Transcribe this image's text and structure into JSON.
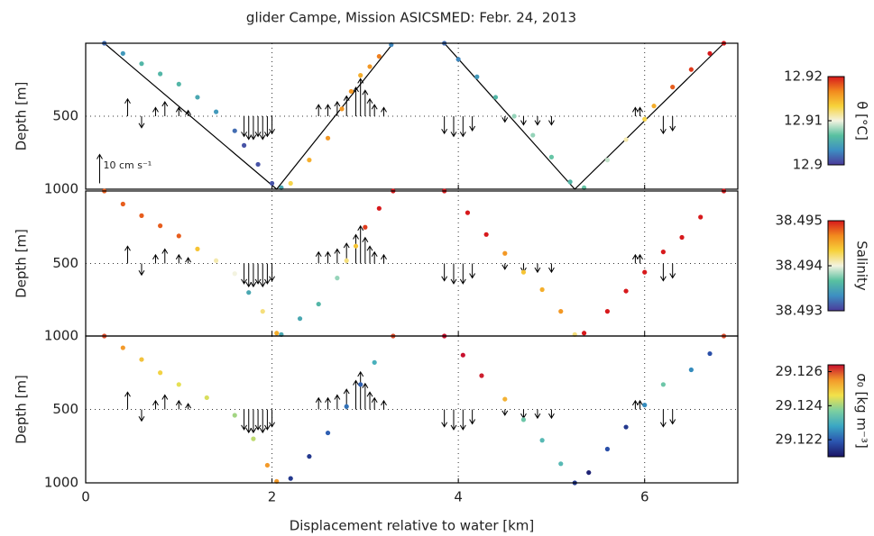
{
  "chart_data": [
    {
      "type": "scatter",
      "title": "glider Campe, Mission ASICSMED: Febr. 24, 2013",
      "ylabel": "Depth [m]",
      "xlim": [
        0,
        7
      ],
      "xticks": [
        0,
        2,
        4,
        6
      ],
      "ylim": [
        1000,
        0
      ],
      "yticks": [
        500,
        1000
      ],
      "grid": true,
      "x": [
        0.2,
        0.4,
        0.6,
        0.8,
        1.0,
        1.2,
        1.4,
        1.6,
        1.7,
        1.85,
        2.0,
        2.1,
        2.2,
        2.4,
        2.6,
        2.75,
        2.85,
        2.95,
        3.05,
        3.15,
        3.28,
        3.85,
        4.0,
        4.2,
        4.4,
        4.6,
        4.8,
        5.0,
        5.2,
        5.35,
        5.6,
        5.8,
        6.0,
        6.1,
        6.3,
        6.5,
        6.7,
        6.85
      ],
      "values": [
        0,
        70,
        140,
        210,
        280,
        370,
        470,
        600,
        700,
        830,
        960,
        990,
        960,
        800,
        650,
        450,
        330,
        220,
        160,
        90,
        10,
        0,
        110,
        230,
        370,
        500,
        630,
        780,
        950,
        990,
        800,
        660,
        520,
        430,
        300,
        180,
        70,
        0
      ],
      "color_values": [
        12.902,
        12.904,
        12.906,
        12.906,
        12.906,
        12.905,
        12.904,
        12.902,
        12.901,
        12.901,
        12.901,
        12.905,
        12.913,
        12.915,
        12.916,
        12.916,
        12.916,
        12.915,
        12.916,
        12.917,
        12.903,
        12.902,
        12.903,
        12.904,
        12.906,
        12.908,
        12.908,
        12.907,
        12.906,
        12.907,
        12.909,
        12.911,
        12.913,
        12.915,
        12.918,
        12.919,
        12.92,
        12.92
      ],
      "reference": {
        "x": [
          0.2,
          2.05,
          3.3,
          null,
          3.85,
          5.25,
          6.85
        ],
        "y": [
          0,
          1000,
          0,
          null,
          0,
          1000,
          0
        ]
      },
      "arrow_scale": {
        "label": "10 cm s⁻¹",
        "value": 10
      },
      "arrows": {
        "x": [
          0.45,
          0.6,
          0.75,
          0.85,
          1.0,
          1.1,
          1.7,
          1.75,
          1.8,
          1.85,
          1.9,
          1.95,
          2.0,
          2.5,
          2.6,
          2.7,
          2.8,
          2.9,
          2.95,
          3.0,
          3.05,
          3.1,
          3.2,
          3.85,
          3.95,
          4.05,
          4.15,
          4.5,
          4.7,
          4.85,
          5.0,
          5.9,
          5.95,
          6.2,
          6.3
        ],
        "v": [
          6,
          -4,
          3,
          5,
          3,
          2,
          -7,
          -8,
          -8,
          -7,
          -8,
          -7,
          -6,
          4,
          4,
          5,
          7,
          10,
          13,
          9,
          6,
          4,
          3,
          -6,
          -7,
          -7,
          -5,
          -2,
          -3,
          -3,
          -3,
          3,
          3,
          -6,
          -5
        ]
      },
      "colorbar": {
        "label": "θ [°C]",
        "lim": [
          12.9,
          12.92
        ],
        "ticks": [
          12.9,
          12.91,
          12.92
        ],
        "colormap": [
          "#4b3a9a",
          "#3d8fc2",
          "#58c0a0",
          "#f3f3e0",
          "#f7d23a",
          "#f28a1e",
          "#d7191c"
        ]
      }
    },
    {
      "type": "scatter",
      "ylabel": "Depth [m]",
      "xlim": [
        0,
        7
      ],
      "xticks": [
        0,
        2,
        4,
        6
      ],
      "ylim": [
        1000,
        0
      ],
      "yticks": [
        500,
        1000
      ],
      "grid": true,
      "x": [
        0.2,
        0.4,
        0.6,
        0.8,
        1.0,
        1.2,
        1.4,
        1.6,
        1.75,
        1.9,
        2.05,
        2.1,
        2.3,
        2.5,
        2.7,
        2.8,
        2.9,
        3.0,
        3.15,
        3.3,
        3.85,
        4.1,
        4.3,
        4.5,
        4.7,
        4.9,
        5.1,
        5.25,
        5.35,
        5.6,
        5.8,
        6.0,
        6.2,
        6.4,
        6.6,
        6.85
      ],
      "values": [
        0,
        90,
        170,
        240,
        310,
        400,
        480,
        570,
        700,
        830,
        980,
        990,
        880,
        780,
        600,
        480,
        380,
        250,
        120,
        0,
        0,
        150,
        300,
        430,
        560,
        680,
        830,
        990,
        980,
        830,
        690,
        560,
        420,
        320,
        180,
        0
      ],
      "color_values": [
        38.4948,
        38.4948,
        38.4948,
        38.4948,
        38.4948,
        38.4944,
        38.4941,
        38.494,
        38.4935,
        38.4942,
        38.4945,
        38.4935,
        38.4935,
        38.4936,
        38.4938,
        38.4942,
        38.4944,
        38.4949,
        38.495,
        38.495,
        38.495,
        38.495,
        38.495,
        38.4946,
        38.4944,
        38.4945,
        38.4946,
        38.4942,
        38.495,
        38.495,
        38.495,
        38.495,
        38.495,
        38.495,
        38.495,
        38.495
      ],
      "arrows": {
        "x": [
          0.45,
          0.6,
          0.75,
          0.85,
          1.0,
          1.1,
          1.7,
          1.75,
          1.8,
          1.85,
          1.9,
          1.95,
          2.0,
          2.5,
          2.6,
          2.7,
          2.8,
          2.9,
          2.95,
          3.0,
          3.05,
          3.1,
          3.2,
          3.85,
          3.95,
          4.05,
          4.15,
          4.5,
          4.7,
          4.85,
          5.0,
          5.9,
          5.95,
          6.2,
          6.3
        ],
        "v": [
          6,
          -4,
          3,
          5,
          3,
          2,
          -7,
          -8,
          -8,
          -7,
          -8,
          -7,
          -6,
          4,
          4,
          5,
          7,
          10,
          13,
          9,
          6,
          4,
          3,
          -6,
          -7,
          -7,
          -5,
          -2,
          -3,
          -3,
          -3,
          3,
          3,
          -6,
          -5
        ]
      },
      "colorbar": {
        "label": "Salinity",
        "lim": [
          38.493,
          38.495
        ],
        "ticks": [
          38.493,
          38.494,
          38.495
        ],
        "colormap": [
          "#4b3a9a",
          "#3d8fc2",
          "#58c0a0",
          "#f3f3e0",
          "#f7d23a",
          "#f28a1e",
          "#d7191c"
        ]
      }
    },
    {
      "type": "scatter",
      "ylabel": "Depth [m]",
      "xlabel": "Displacement relative to water [km]",
      "xlim": [
        0,
        7
      ],
      "xticks": [
        0,
        2,
        4,
        6
      ],
      "ylim": [
        1000,
        0
      ],
      "yticks": [
        500,
        1000
      ],
      "grid": true,
      "x": [
        0.2,
        0.4,
        0.6,
        0.8,
        1.0,
        1.3,
        1.6,
        1.8,
        1.95,
        2.05,
        2.2,
        2.4,
        2.6,
        2.8,
        2.95,
        3.1,
        3.3,
        3.85,
        4.05,
        4.25,
        4.5,
        4.7,
        4.9,
        5.1,
        5.25,
        5.4,
        5.6,
        5.8,
        6.0,
        6.2,
        6.5,
        6.7,
        6.85
      ],
      "values": [
        0,
        80,
        160,
        250,
        330,
        420,
        540,
        700,
        880,
        990,
        970,
        820,
        660,
        480,
        330,
        180,
        0,
        0,
        130,
        270,
        430,
        570,
        710,
        870,
        1000,
        930,
        770,
        620,
        470,
        330,
        230,
        120,
        0
      ],
      "color_values": [
        29.126,
        29.1255,
        29.125,
        29.1248,
        29.1245,
        29.1244,
        29.124,
        29.1242,
        29.1255,
        29.1255,
        29.1215,
        29.1215,
        29.122,
        29.1222,
        29.122,
        29.123,
        29.126,
        29.1265,
        29.1265,
        29.1263,
        29.1252,
        29.1235,
        29.1232,
        29.1232,
        29.1215,
        29.1212,
        29.1218,
        29.1215,
        29.1225,
        29.1235,
        29.1225,
        29.1218,
        29.126
      ],
      "arrows": {
        "x": [
          0.45,
          0.6,
          0.75,
          0.85,
          1.0,
          1.1,
          1.7,
          1.75,
          1.8,
          1.85,
          1.9,
          1.95,
          2.0,
          2.5,
          2.6,
          2.7,
          2.8,
          2.9,
          2.95,
          3.0,
          3.05,
          3.1,
          3.2,
          3.85,
          3.95,
          4.05,
          4.15,
          4.5,
          4.7,
          4.85,
          5.0,
          5.9,
          5.95,
          6.2,
          6.3
        ],
        "v": [
          6,
          -4,
          3,
          5,
          3,
          2,
          -7,
          -8,
          -8,
          -7,
          -8,
          -7,
          -6,
          4,
          4,
          5,
          7,
          10,
          13,
          9,
          6,
          4,
          3,
          -6,
          -7,
          -7,
          -5,
          -2,
          -3,
          -3,
          -3,
          3,
          3,
          -6,
          -5
        ]
      },
      "colorbar": {
        "label": "σ₀ [kg m⁻³]",
        "lim": [
          29.121,
          29.1264
        ],
        "ticks": [
          29.122,
          29.124,
          29.126
        ],
        "colormap": [
          "#1b1464",
          "#2c56b0",
          "#3aa7c4",
          "#7ccfa0",
          "#f2e24a",
          "#f39a2a",
          "#c8102e"
        ]
      }
    }
  ]
}
